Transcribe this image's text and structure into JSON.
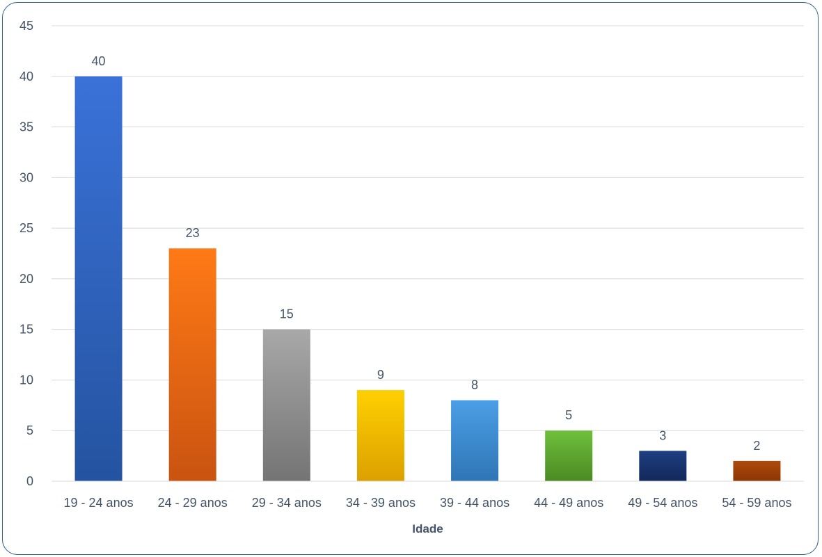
{
  "chart_data": {
    "type": "bar",
    "title": "",
    "xlabel": "Idade",
    "ylabel": "",
    "categories": [
      "19 - 24 anos",
      "24 - 29 anos",
      "29 - 34 anos",
      "34 - 39 anos",
      "39 - 44 anos",
      "44 - 49 anos",
      "49 - 54 anos",
      "54 - 59 anos"
    ],
    "values": [
      40,
      23,
      15,
      9,
      8,
      5,
      3,
      2
    ],
    "ylim": [
      0,
      45
    ],
    "yticks": [
      "0",
      "5",
      "10",
      "15",
      "20",
      "25",
      "30",
      "35",
      "40",
      "45"
    ],
    "data_labels": [
      "40",
      "23",
      "15",
      "9",
      "8",
      "5",
      "3",
      "2"
    ],
    "grid": true,
    "legend": "none",
    "bar_colors": [
      [
        "#3a72d8",
        "#2453a0"
      ],
      [
        "#ff7a16",
        "#c95310"
      ],
      [
        "#a8a8a8",
        "#747474"
      ],
      [
        "#ffd000",
        "#dca000"
      ],
      [
        "#4b9ee6",
        "#2f75b5"
      ],
      [
        "#6fbf3c",
        "#4a8a22"
      ],
      [
        "#1f3f82",
        "#12285a"
      ],
      [
        "#b04a0c",
        "#8a3604"
      ]
    ],
    "text_color": "#44546a",
    "grid_color": "#d9d9d9",
    "border_color": "#2f5f8f"
  }
}
